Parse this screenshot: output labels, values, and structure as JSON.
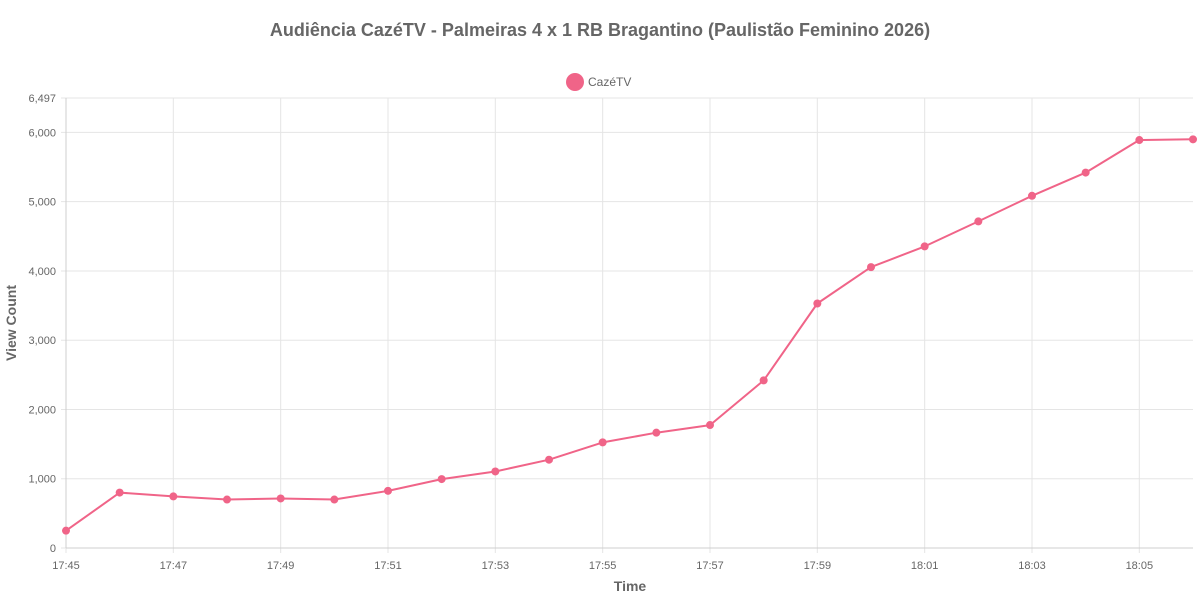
{
  "chart_data": {
    "type": "line",
    "title": "Audiência CazéTV - Palmeiras 4 x 1 RB Bragantino (Paulistão Feminino 2026)",
    "xlabel": "Time",
    "ylabel": "View Count",
    "ylim": [
      0,
      6497
    ],
    "yticks": [
      0,
      1000,
      2000,
      3000,
      4000,
      5000,
      6000,
      6497
    ],
    "ytick_labels": [
      "0",
      "1,000",
      "2,000",
      "3,000",
      "4,000",
      "5,000",
      "6,000",
      "6,497"
    ],
    "x": [
      "17:45",
      "17:46",
      "17:47",
      "17:48",
      "17:49",
      "17:50",
      "17:51",
      "17:52",
      "17:53",
      "17:54",
      "17:55",
      "17:56",
      "17:57",
      "17:58",
      "17:59",
      "18:00",
      "18:01",
      "18:02",
      "18:03",
      "18:04",
      "18:05",
      "18:06"
    ],
    "xtick_labels": [
      "17:45",
      "17:47",
      "17:49",
      "17:51",
      "17:53",
      "17:55",
      "17:57",
      "17:59",
      "18:01",
      "18:03",
      "18:05"
    ],
    "grid": true,
    "legend_position": "top-center",
    "series": [
      {
        "name": "CazéTV",
        "color": "#f06488",
        "values": [
          250,
          800,
          745,
          700,
          715,
          700,
          825,
          995,
          1105,
          1275,
          1525,
          1665,
          1775,
          2420,
          3530,
          4055,
          4355,
          4715,
          5085,
          5420,
          5890,
          5900
        ]
      }
    ]
  }
}
